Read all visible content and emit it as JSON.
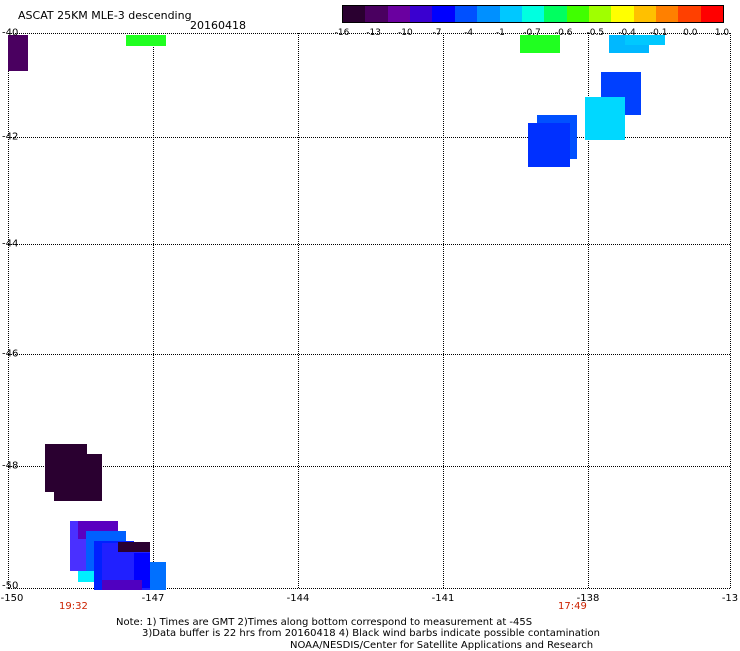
{
  "header": {
    "title": "ASCAT 25KM MLE-3 descending",
    "date": "20160418"
  },
  "colorbar": {
    "labels": [
      "-16",
      "-13",
      "-10",
      "-7",
      "-4",
      "-1",
      "-0.7",
      "-0.6",
      "-0.5",
      "-0.4",
      "-0.1",
      "0.0",
      "1.0"
    ],
    "colors": [
      "#2a0030",
      "#4a0060",
      "#6a00a0",
      "#3a00d0",
      "#0000ff",
      "#0050ff",
      "#0090ff",
      "#00c8ff",
      "#00ffe0",
      "#00ff60",
      "#40ff00",
      "#a0ff00",
      "#ffff00",
      "#ffc000",
      "#ff8000",
      "#ff4000",
      "#ff0000"
    ]
  },
  "axes": {
    "x_ticks": [
      "-150",
      "-147",
      "-144",
      "-141",
      "-138",
      "-13"
    ],
    "y_ticks": [
      "-40",
      "-42",
      "-44",
      "-46",
      "-48",
      "-50"
    ]
  },
  "time_labels": {
    "left": "19:32",
    "right": "17:49"
  },
  "footer": {
    "note_line1": "Note: 1) Times are GMT 2)Times along bottom correspond to measurement at -45S",
    "note_line2": "3)Data buffer is 22 hrs from 20160418 4) Black wind barbs indicate possible contamination",
    "credit": "NOAA/NESDIS/Center for Satellite Applications and Research"
  }
}
